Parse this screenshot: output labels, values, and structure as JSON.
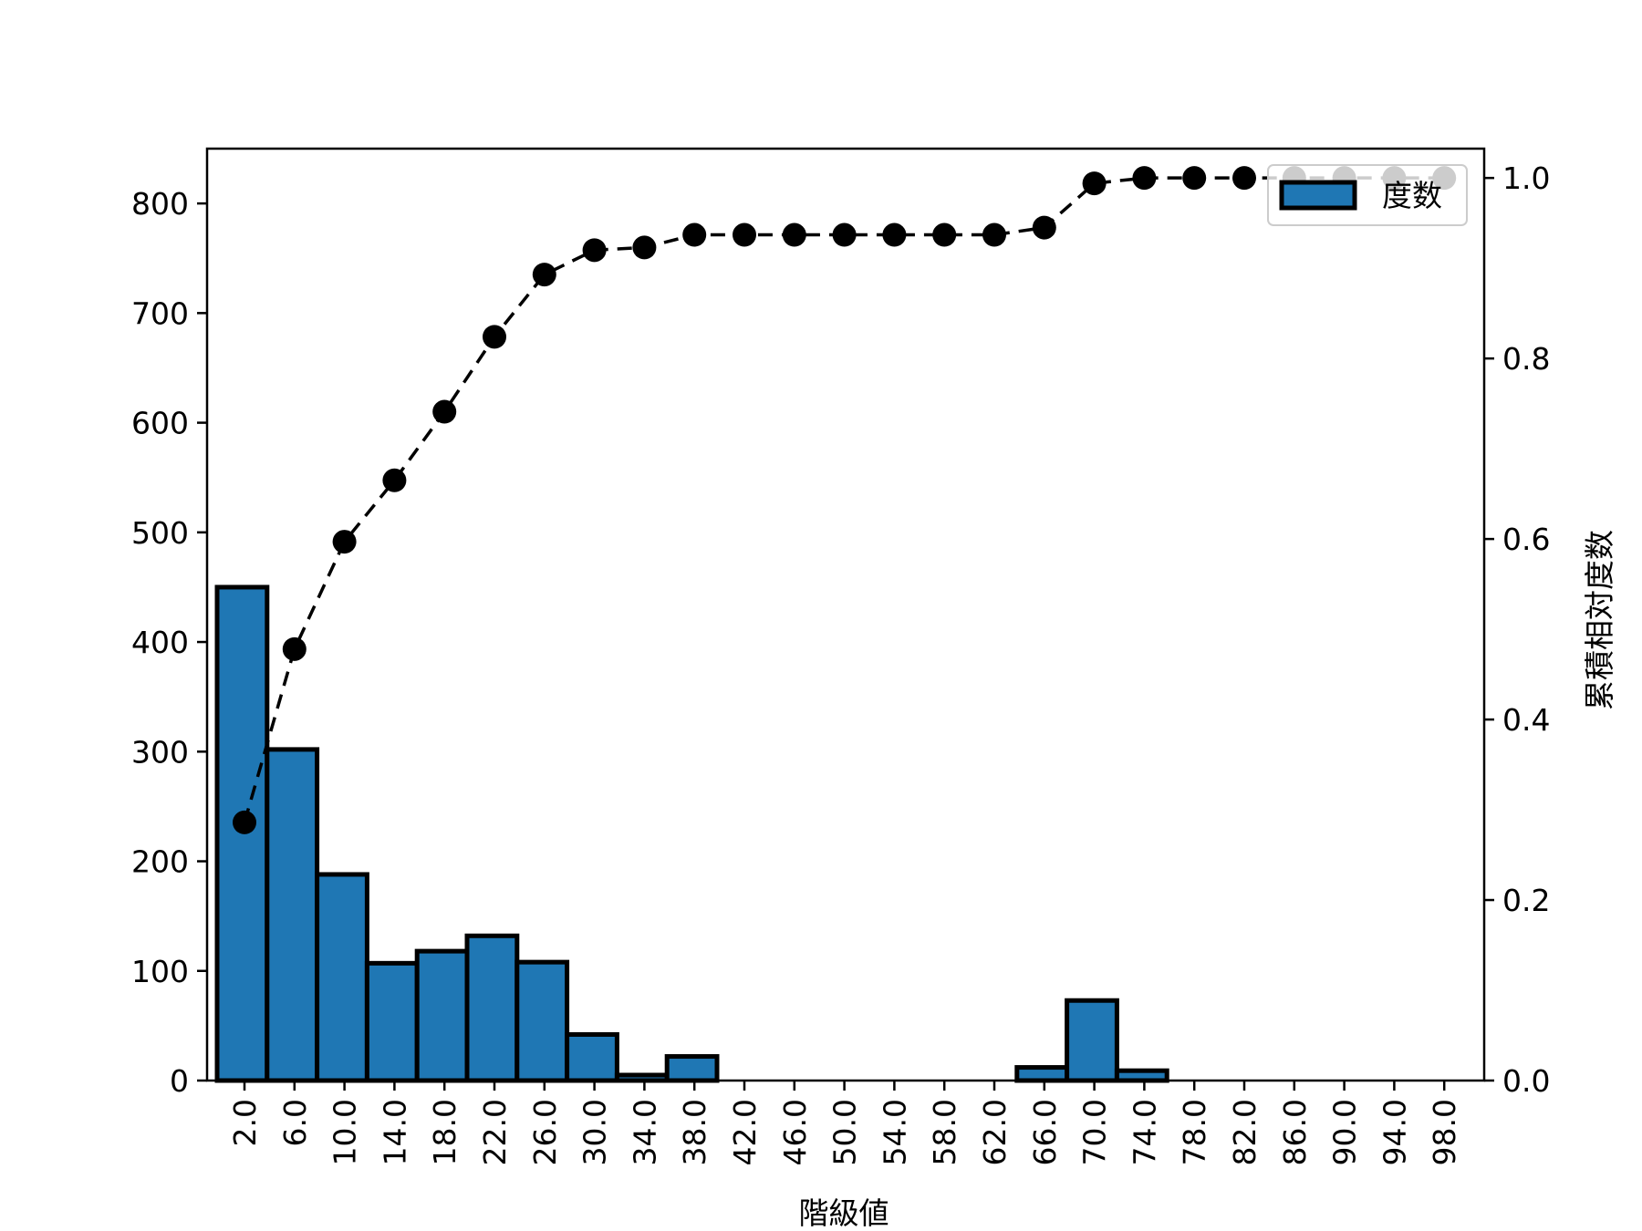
{
  "chart_data": {
    "type": "bar",
    "xlabel": "階級値",
    "ylabel_left": "",
    "ylabel_right": "累積相対度数",
    "categories": [
      "2.0",
      "6.0",
      "10.0",
      "14.0",
      "18.0",
      "22.0",
      "26.0",
      "30.0",
      "34.0",
      "38.0",
      "42.0",
      "46.0",
      "50.0",
      "54.0",
      "58.0",
      "62.0",
      "66.0",
      "70.0",
      "74.0",
      "78.0",
      "82.0",
      "86.0",
      "90.0",
      "94.0",
      "98.0"
    ],
    "series": [
      {
        "name": "度数",
        "type": "bar",
        "axis": "left",
        "color": "#1f77b4",
        "values": [
          450,
          302,
          188,
          107,
          118,
          132,
          108,
          42,
          5,
          22,
          0,
          0,
          0,
          0,
          0,
          0,
          12,
          73,
          9,
          0,
          0,
          0,
          0,
          0,
          0
        ]
      },
      {
        "type": "line",
        "axis": "right",
        "color": "#000000",
        "style": "dashed",
        "marker": "circle",
        "values": [
          0.286,
          0.478,
          0.597,
          0.665,
          0.741,
          0.824,
          0.893,
          0.92,
          0.923,
          0.937,
          0.937,
          0.937,
          0.937,
          0.937,
          0.937,
          0.937,
          0.945,
          0.994,
          1.0,
          1.0,
          1.0,
          1.0,
          1.0,
          1.0,
          1.0
        ]
      }
    ],
    "ylim_left": [
      0,
      850
    ],
    "yticks_left": [
      0,
      100,
      200,
      300,
      400,
      500,
      600,
      700,
      800
    ],
    "ylim_right": [
      0,
      1.0325
    ],
    "yticks_right": [
      "0.0",
      "0.2",
      "0.4",
      "0.6",
      "0.8",
      "1.0"
    ],
    "legend": {
      "position": "top-right",
      "entries": [
        "度数"
      ]
    },
    "grid": false
  }
}
